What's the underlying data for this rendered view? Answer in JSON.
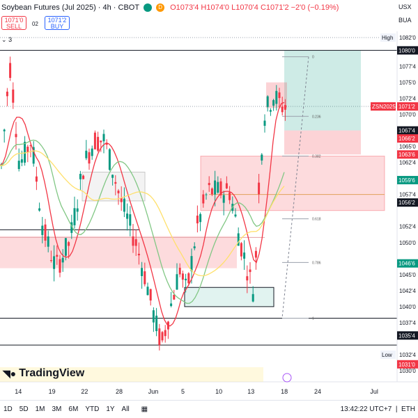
{
  "header": {
    "title": "Soybean Futures (Jul 2025) · 4h · CBOT",
    "ohlc": "O1073'4 H1074'0 L1070'4 C1071'2 −2'0 (−0.19%)",
    "dot1_color": "#089981",
    "dot2_color": "#ff9800",
    "dot2_label": "D",
    "currency": "USX",
    "unit": "BUA"
  },
  "trade": {
    "sell_price": "1071'0",
    "sell_label": "SELL",
    "spread": "02",
    "buy_price": "1071'2",
    "buy_label": "BUY"
  },
  "indicator_count": "3",
  "bottom_toolbar": {
    "timeframes": [
      "1D",
      "5D",
      "1M",
      "3M",
      "6M",
      "YTD",
      "1Y",
      "All"
    ],
    "clock": "13:42:22 UTC+7",
    "session": "ETH"
  },
  "logo_text": "TradingView",
  "chart_data": {
    "type": "candlestick",
    "ylim": [
      1030.5,
      1083.5
    ],
    "x_ticks": [
      {
        "label": "14",
        "pos": 0.046
      },
      {
        "label": "19",
        "pos": 0.131
      },
      {
        "label": "22",
        "pos": 0.213
      },
      {
        "label": "28",
        "pos": 0.3
      },
      {
        "label": "Jun",
        "pos": 0.382
      },
      {
        "label": "5",
        "pos": 0.465
      },
      {
        "label": "10",
        "pos": 0.551
      },
      {
        "label": "13",
        "pos": 0.632
      },
      {
        "label": "18",
        "pos": 0.716
      },
      {
        "label": "24",
        "pos": 0.8
      },
      {
        "label": "Jul",
        "pos": 0.941
      }
    ],
    "y_ticks": [
      {
        "label": "1082'0",
        "value": 1082.0
      },
      {
        "label": "1077'4",
        "value": 1077.5
      },
      {
        "label": "1075'0",
        "value": 1075.0
      },
      {
        "label": "1072'4",
        "value": 1072.5
      },
      {
        "label": "1070'0",
        "value": 1070.0
      },
      {
        "label": "1065'0",
        "value": 1065.0
      },
      {
        "label": "1062'4",
        "value": 1062.5
      },
      {
        "label": "1057'4",
        "value": 1057.5
      },
      {
        "label": "1052'4",
        "value": 1052.5
      },
      {
        "label": "1050'0",
        "value": 1050.0
      },
      {
        "label": "1045'0",
        "value": 1045.0
      },
      {
        "label": "1042'4",
        "value": 1042.5
      },
      {
        "label": "1040'0",
        "value": 1040.0
      },
      {
        "label": "1037'4",
        "value": 1037.5
      },
      {
        "label": "1032'4",
        "value": 1032.5
      },
      {
        "label": "1030'0",
        "value": 1030.0
      }
    ],
    "price_badges": [
      {
        "label": "High",
        "value": 1082.0,
        "style": "plain"
      },
      {
        "label": "1080'0",
        "value": 1080.0,
        "style": "dark"
      },
      {
        "label": "ZSN2025",
        "value": 1071.25,
        "style": "red"
      },
      {
        "label": "1071'2",
        "value": 1071.25,
        "style": "red"
      },
      {
        "label": "1067'4",
        "value": 1067.5,
        "style": "dark"
      },
      {
        "label": "1066'2",
        "value": 1066.25,
        "style": "red"
      },
      {
        "label": "1063'6",
        "value": 1063.75,
        "style": "red"
      },
      {
        "label": "1059'6",
        "value": 1059.75,
        "style": "green"
      },
      {
        "label": "1056'2",
        "value": 1056.25,
        "style": "dark"
      },
      {
        "label": "1046'6",
        "value": 1046.75,
        "style": "green"
      },
      {
        "label": "1035'4",
        "value": 1035.5,
        "style": "dark"
      },
      {
        "label": "Low",
        "value": 1032.5,
        "style": "plain"
      },
      {
        "label": "1031'0",
        "value": 1031.0,
        "style": "red"
      }
    ],
    "fib_labels": [
      {
        "label": "0",
        "value": 1079.0
      },
      {
        "label": "0.236",
        "value": 1069.7
      },
      {
        "label": "0.382",
        "value": 1063.5
      },
      {
        "label": "0.618",
        "value": 1053.7
      },
      {
        "label": "0.786",
        "value": 1046.9
      },
      {
        "label": "1",
        "value": 1038.2
      }
    ],
    "colors": {
      "up": "#089981",
      "down": "#f23645",
      "ma_fast": "#f23645",
      "ma_mid": "#81c784",
      "ma_slow": "#ffe06b"
    }
  }
}
